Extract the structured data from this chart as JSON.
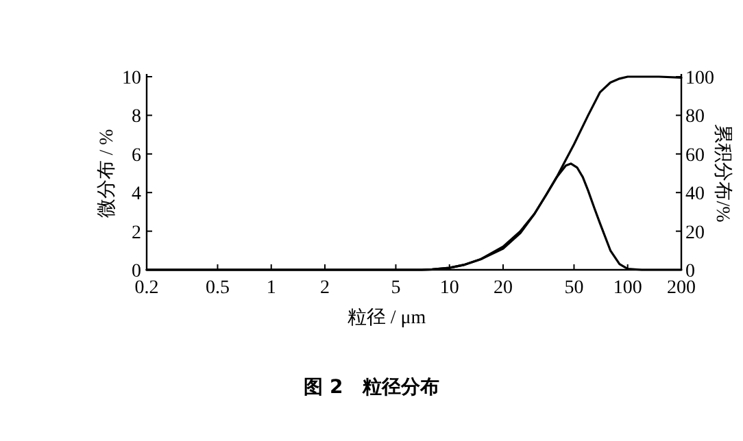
{
  "chart_data": {
    "type": "line",
    "title": "图 2　粒径分布",
    "xlabel": "粒径 / μm",
    "ylabel": "微分布 / %",
    "y2label": "累积分布/%",
    "log": "x",
    "grid": false,
    "marker": "none",
    "line_style": "solid",
    "xlim": [
      0.2,
      200
    ],
    "xticks": [
      0.2,
      0.5,
      1,
      2,
      5,
      10,
      20,
      50,
      100,
      200
    ],
    "ylim": [
      0,
      10
    ],
    "yticks": [
      0,
      2,
      4,
      6,
      8,
      10
    ],
    "y2lim": [
      0,
      100
    ],
    "y2ticks": [
      0,
      20,
      40,
      60,
      80,
      100
    ],
    "series": [
      {
        "color": "#000000",
        "x": [
          0.2,
          1,
          5,
          7,
          8,
          10,
          12,
          15,
          20,
          25,
          30,
          35,
          40,
          45,
          48,
          52,
          56,
          60,
          65,
          70,
          80,
          90,
          100,
          120,
          200
        ],
        "values": [
          0,
          0,
          0,
          0,
          0.02,
          0.1,
          0.25,
          0.55,
          1.1,
          1.9,
          2.9,
          3.9,
          4.8,
          5.4,
          5.5,
          5.3,
          4.8,
          4.1,
          3.2,
          2.4,
          1.0,
          0.3,
          0.05,
          0,
          0
        ]
      },
      {
        "color": "#000000",
        "axis": "y2",
        "x": [
          0.2,
          1,
          5,
          7,
          8,
          10,
          12,
          15,
          20,
          25,
          30,
          35,
          40,
          45,
          50,
          60,
          70,
          80,
          90,
          100,
          120,
          150,
          200
        ],
        "values": [
          0,
          0,
          0,
          0,
          0.2,
          1,
          2.5,
          5.5,
          12,
          20,
          29,
          39,
          48,
          57,
          65,
          80,
          92,
          97,
          99,
          100,
          100,
          100,
          99.5
        ]
      }
    ]
  }
}
